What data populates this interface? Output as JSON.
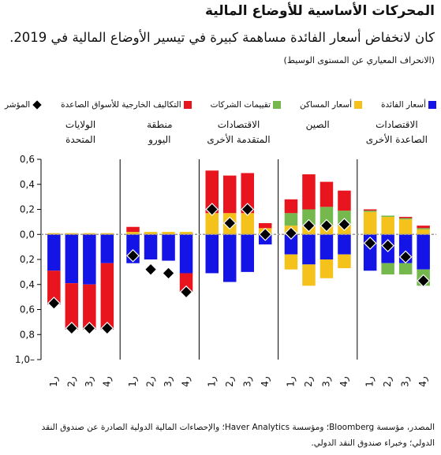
{
  "title": "المحركات الأساسية للأوضاع المالية",
  "subtitle": "كان لانخفاض أسعار الفائدة مساهمة كبيرة في تيسير الأوضاع المالية في 2019.",
  "note": "(الانحراف المعياري عن المستوى الوسيط)",
  "source_line1": "المصدر، مؤسسة Bloomberg؛ ومؤسسة Haver Analytics؛ والإحصاءات المالية الدولية الصادرة عن صندوق النقد",
  "source_line2": "الدولي؛ وخبراء صندوق النقد الدولي.",
  "colors": {
    "rates": "#1414e6",
    "house": "#f5c21b",
    "corp": "#74b84e",
    "ext": "#e8141e",
    "index": "#000000"
  },
  "chart_data": {
    "type": "bar",
    "stacked": true,
    "ylim": [
      -1.0,
      0.6
    ],
    "yticks": [
      "0,6",
      "0,4",
      "0,2",
      "0,0",
      "0,2",
      "0,4",
      "0,6",
      "0,8",
      "1,0–"
    ],
    "legend_placement": "top",
    "legend": [
      {
        "key": "rates",
        "label": "أسعار الفائدة"
      },
      {
        "key": "house",
        "label": "أسعار المساكن"
      },
      {
        "key": "corp",
        "label": "تقييمات الشركات"
      },
      {
        "key": "ext",
        "label": "التكاليف الخارجية للأسواق الصاعدة"
      },
      {
        "key": "index",
        "label": "المؤشر"
      }
    ],
    "categories": [
      "ر1",
      "ر2",
      "ر3",
      "ر4",
      "ر1",
      "ر2",
      "ر3",
      "ر4",
      "ر1",
      "ر2",
      "ر3",
      "ر4",
      "ر1",
      "ر2",
      "ر3",
      "ر4",
      "ر1",
      "ر2",
      "ر3",
      "ر4"
    ],
    "groups": [
      {
        "name": "الولايات المتحدة",
        "lines": [
          "الولايات",
          "المتحدة"
        ]
      },
      {
        "name": "منطقة اليورو",
        "lines": [
          "منطقة",
          "اليورو"
        ]
      },
      {
        "name": "الاقتصادات المتقدمة الأخرى",
        "lines": [
          "الاقتصادات",
          "المتقدمة الأخرى"
        ]
      },
      {
        "name": "الصين",
        "lines": [
          "الصين"
        ]
      },
      {
        "name": "الاقتصادات الصاعدة الأخرى",
        "lines": [
          "الاقتصادات",
          "الصاعدة الأخرى"
        ]
      }
    ],
    "series": [
      {
        "key": "rates",
        "values": [
          -0.29,
          -0.39,
          -0.4,
          -0.23,
          -0.23,
          -0.2,
          -0.21,
          -0.31,
          -0.31,
          -0.38,
          -0.3,
          -0.08,
          -0.16,
          -0.24,
          -0.2,
          -0.16,
          -0.29,
          -0.23,
          -0.23,
          -0.28
        ]
      },
      {
        "key": "house",
        "values": [
          0.01,
          0.01,
          0.01,
          0.01,
          0.02,
          0.02,
          0.02,
          0.02,
          0.17,
          0.17,
          0.17,
          0.05,
          0.07,
          0.07,
          0.07,
          0.07,
          0.18,
          0.14,
          0.12,
          0.04
        ]
      },
      {
        "key": "corp",
        "values": [
          0,
          0,
          0,
          0,
          0,
          0,
          0,
          0,
          0,
          0,
          0,
          0,
          0.1,
          0.13,
          0.15,
          0.12,
          0.01,
          0.01,
          0.01,
          0.01
        ]
      },
      {
        "key": "ext",
        "values": [
          -0.27,
          -0.37,
          -0.36,
          -0.53,
          0.04,
          0,
          0,
          -0.15,
          0.34,
          0.3,
          0.32,
          0.04,
          0.11,
          0.28,
          0.2,
          0.16,
          0.01,
          0,
          0.01,
          0.02
        ]
      },
      {
        "key": "house_neg",
        "color_key": "house",
        "values": [
          0,
          0,
          0,
          0,
          0,
          0,
          0,
          0,
          0,
          0,
          0,
          0,
          -0.12,
          -0.17,
          -0.15,
          -0.11,
          0,
          0,
          0,
          0
        ]
      },
      {
        "key": "corp_neg",
        "color_key": "corp",
        "values": [
          0,
          0,
          0,
          0,
          0,
          0,
          0,
          0,
          0,
          0,
          0,
          0,
          0,
          0,
          0,
          0,
          0,
          -0.09,
          -0.09,
          -0.13
        ]
      }
    ],
    "index": [
      -0.55,
      -0.75,
      -0.75,
      -0.75,
      -0.17,
      -0.28,
      -0.31,
      -0.46,
      0.2,
      0.09,
      0.2,
      0.0,
      0.01,
      0.07,
      0.07,
      0.08,
      -0.07,
      -0.09,
      -0.18,
      -0.37
    ]
  }
}
